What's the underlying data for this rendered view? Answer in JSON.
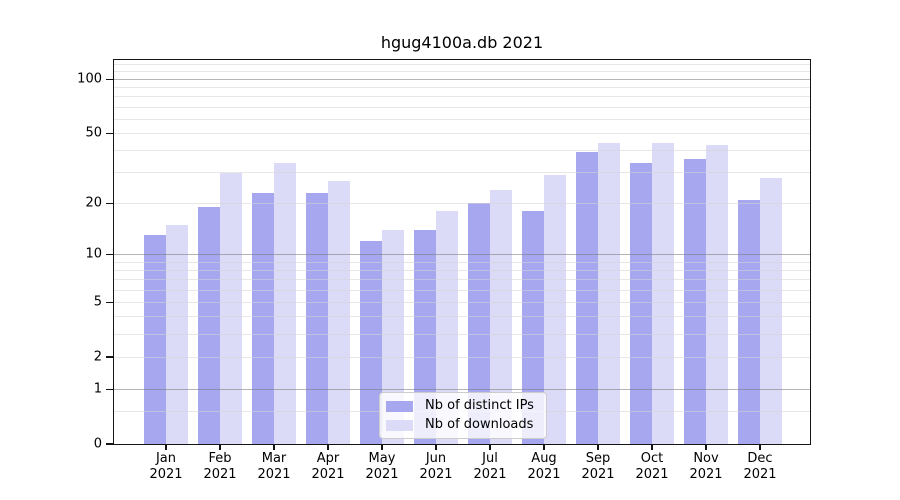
{
  "figure": {
    "title": "hgug4100a.db 2021"
  },
  "legend": {
    "items": [
      {
        "label": "Nb of distinct IPs",
        "color": "#a7a7f0"
      },
      {
        "label": "Nb of downloads",
        "color": "#dbdbf8"
      }
    ]
  },
  "y_axis": {
    "tick_values": [
      100,
      50,
      20,
      10,
      5,
      2,
      1,
      0
    ],
    "tick_labels": [
      "100",
      "50",
      "20",
      "10",
      "5",
      "2",
      "1",
      "0"
    ]
  },
  "chart_data": {
    "type": "bar",
    "title": "hgug4100a.db 2021",
    "categories": [
      "Jan 2021",
      "Feb 2021",
      "Mar 2021",
      "Apr 2021",
      "May 2021",
      "Jun 2021",
      "Jul 2021",
      "Aug 2021",
      "Sep 2021",
      "Oct 2021",
      "Nov 2021",
      "Dec 2021"
    ],
    "series": [
      {
        "name": "Nb of distinct IPs",
        "color": "#a7a7f0",
        "values": [
          13,
          19,
          23,
          23,
          12,
          14,
          20,
          18,
          39,
          34,
          36,
          21
        ]
      },
      {
        "name": "Nb of downloads",
        "color": "#dbdbf8",
        "values": [
          15,
          30,
          34,
          27,
          14,
          18,
          24,
          29,
          44,
          44,
          43,
          28
        ]
      }
    ],
    "xlabel": "",
    "ylabel": "",
    "y_scale": "log10(1+x)",
    "ylim": [
      0,
      129
    ],
    "y_ticks": [
      0,
      1,
      2,
      5,
      10,
      20,
      50,
      100
    ],
    "major_gridlines": [
      1,
      10,
      100
    ],
    "minor_gridlines": [
      0.5,
      2,
      3,
      4,
      5,
      6,
      7,
      8,
      9,
      20,
      30,
      40,
      50,
      60,
      70,
      80,
      90,
      110,
      120
    ],
    "grid": true,
    "legend_position": "lower center"
  }
}
